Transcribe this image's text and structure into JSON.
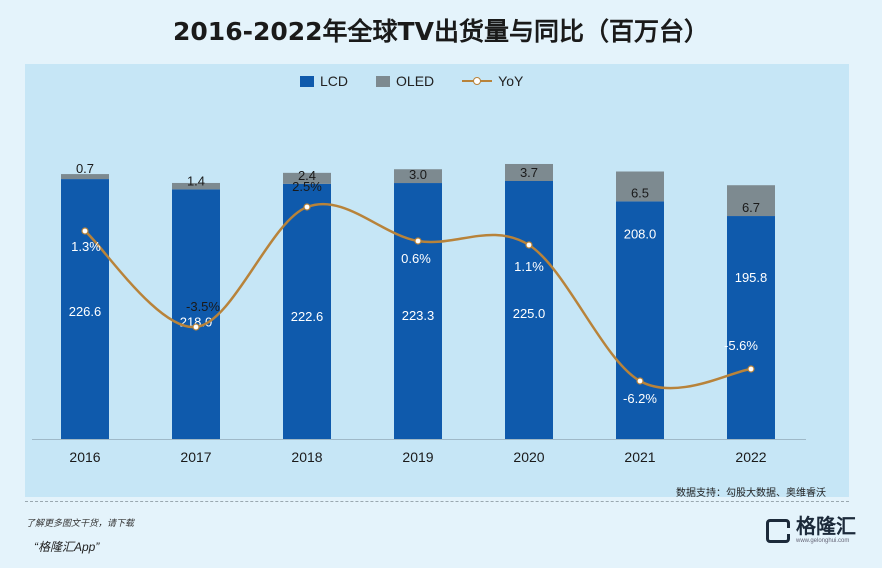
{
  "title": "2016-2022年全球TV出货量与同比（百万台）",
  "legend": {
    "lcd": "LCD",
    "oled": "OLED",
    "yoy": "YoY"
  },
  "source": "数据支持：勾股大数据、奥维睿沃",
  "footer": {
    "note": "了解更多图文干货，请下载",
    "app": "“格隆汇App”"
  },
  "logo": {
    "name": "格隆汇",
    "sub": "www.gelonghui.com"
  },
  "colors": {
    "lcd": "#0f5aac",
    "oled": "#7d8a90",
    "yoy": "#b8833a"
  },
  "chart_data": {
    "type": "bar",
    "stacked": true,
    "categories": [
      "2016",
      "2017",
      "2018",
      "2019",
      "2020",
      "2021",
      "2022"
    ],
    "series": [
      {
        "name": "LCD",
        "values": [
          226.6,
          218.0,
          222.6,
          223.3,
          225.0,
          208.0,
          195.8
        ],
        "labels": [
          "226.6",
          "218.0",
          "222.6",
          "223.3",
          "225.0",
          "208.0",
          "195.8"
        ]
      },
      {
        "name": "OLED",
        "values": [
          0.7,
          1.4,
          2.4,
          3.0,
          3.7,
          6.5,
          6.7
        ],
        "labels": [
          "0.7",
          "1.4",
          "2.4",
          "3.0",
          "3.7",
          "6.5",
          "6.7"
        ]
      },
      {
        "name": "YoY",
        "values": [
          1.3,
          -3.5,
          2.5,
          0.6,
          1.1,
          -6.2,
          -5.6
        ],
        "labels": [
          "1.3%",
          "-3.5%",
          "2.5%",
          "0.6%",
          "1.1%",
          "-6.2%",
          "-5.6%"
        ]
      }
    ],
    "title": "2016-2022年全球TV出货量与同比（百万台）",
    "legend_position": "top-center",
    "grid": false
  }
}
